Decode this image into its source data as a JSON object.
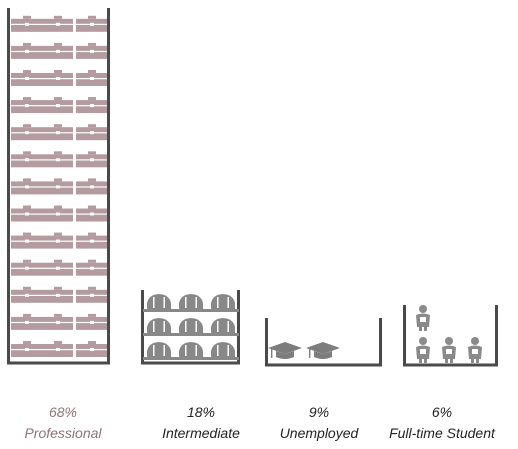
{
  "chart_data": {
    "type": "unit-chart",
    "categories": [
      {
        "name": "Professional",
        "percent_label": "68%",
        "value": 68,
        "icon": "briefcase-icon",
        "icon_count": 39,
        "color": "#b39b9f",
        "label_color": "#8f7377"
      },
      {
        "name": "Intermediate",
        "percent_label": "18%",
        "value": 18,
        "icon": "hard-hat-icon",
        "icon_count": 9,
        "color": "#888888",
        "label_color": "#222222"
      },
      {
        "name": "Unemployed",
        "percent_label": "9%",
        "value": 9,
        "icon": "graduation-cap-icon",
        "icon_count": 2,
        "color": "#7d7d7d",
        "label_color": "#222222"
      },
      {
        "name": "Full-time Student",
        "percent_label": "6%",
        "value": 6,
        "icon": "student-icon",
        "icon_count": 4,
        "color": "#8a8a8a",
        "label_color": "#222222"
      }
    ],
    "container_color": "#4a4a4a"
  }
}
